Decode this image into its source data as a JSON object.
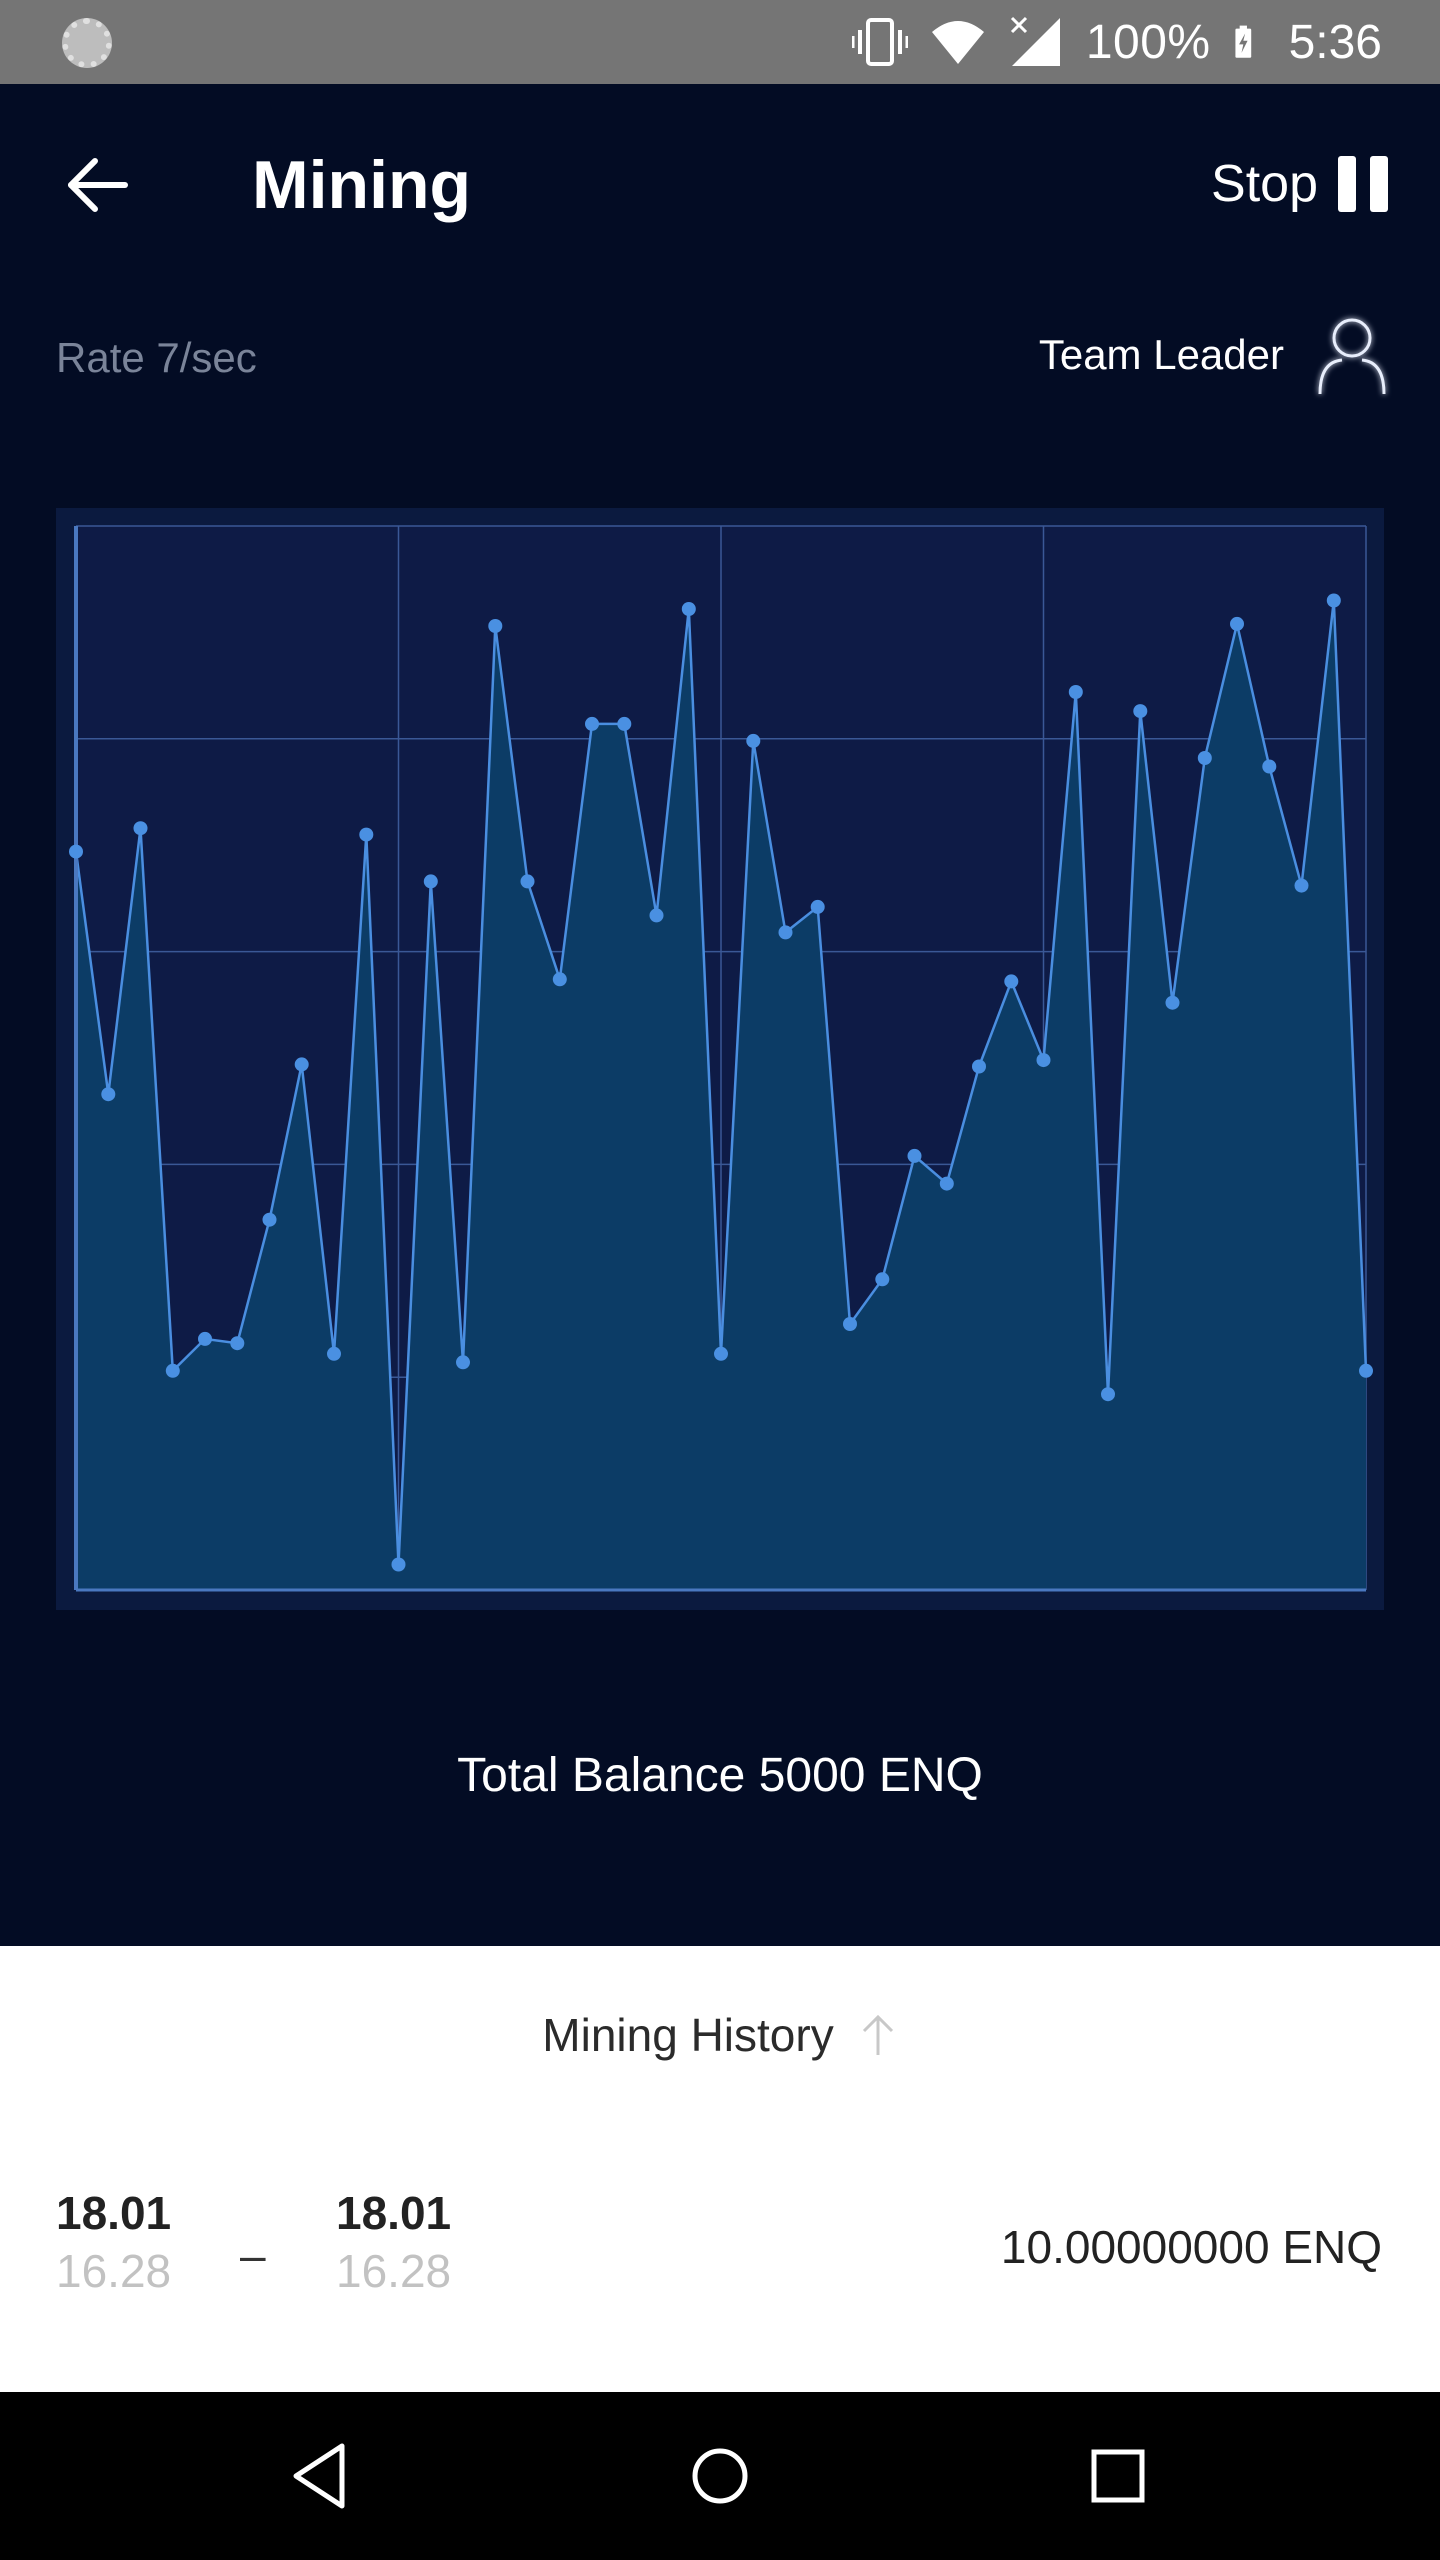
{
  "status_bar": {
    "battery_text": "100%",
    "time": "5:36",
    "icons": [
      "sync-icon",
      "vibrate-icon",
      "wifi-icon",
      "signal-icon",
      "battery-charging-icon"
    ]
  },
  "header": {
    "title": "Mining",
    "stop_label": "Stop",
    "back_icon": "arrow-left-icon",
    "pause_icon": "pause-icon"
  },
  "info": {
    "rate": "Rate 7/sec",
    "team_label": "Team Leader",
    "team_icon": "person-icon"
  },
  "chart_data": {
    "type": "area",
    "x": [
      0,
      1,
      2,
      3,
      4,
      5,
      6,
      7,
      8,
      9,
      10,
      11,
      12,
      13,
      14,
      15,
      16,
      17,
      18,
      19,
      20,
      21,
      22,
      23,
      24,
      25,
      26,
      27,
      28,
      29,
      30,
      31,
      32,
      33,
      34,
      35,
      36,
      37,
      38,
      39,
      40
    ],
    "values": [
      3.47,
      2.33,
      3.58,
      1.03,
      1.18,
      1.16,
      1.74,
      2.47,
      1.11,
      3.55,
      0.12,
      3.33,
      1.07,
      4.53,
      3.33,
      2.87,
      4.07,
      4.07,
      3.17,
      4.61,
      1.11,
      3.99,
      3.09,
      3.21,
      1.25,
      1.46,
      2.04,
      1.91,
      2.46,
      2.86,
      2.49,
      4.22,
      0.92,
      4.13,
      2.76,
      3.91,
      4.54,
      3.87,
      3.31,
      4.65,
      1.03
    ],
    "ylim": [
      0,
      5
    ],
    "xlim": [
      0,
      40
    ],
    "grid": true,
    "grid_rows": 5,
    "grid_cols": 4,
    "colors": {
      "line": "#4a8ee0",
      "fill": "#0c3c66",
      "point": "#4a90e2",
      "grid": "#3a5896",
      "background": "#0b1a3f",
      "plot_background": "#0e1b46"
    }
  },
  "balance": {
    "text": "Total Balance 5000 ENQ"
  },
  "history": {
    "title": "Mining History",
    "sort_icon": "arrow-up-icon",
    "rows": [
      {
        "start_date": "18.01",
        "start_time": "16.28",
        "dash": "–",
        "end_date": "18.01",
        "end_time": "16.28",
        "amount": "10.00000000 ENQ"
      }
    ]
  },
  "nav": {
    "back_icon": "nav-back-icon",
    "home_icon": "nav-home-icon",
    "recents_icon": "nav-recents-icon"
  }
}
